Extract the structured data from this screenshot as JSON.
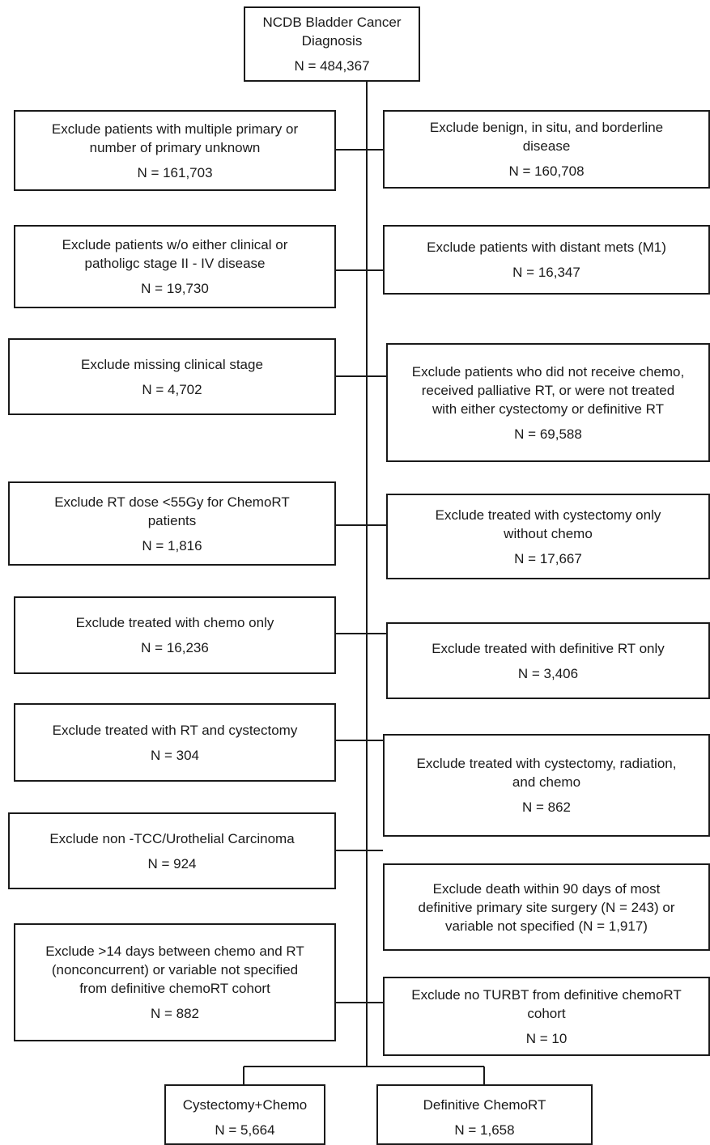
{
  "root": {
    "text": "NCDB Bladder Cancer Diagnosis",
    "n": "N = 484,367"
  },
  "left": [
    {
      "text": "Exclude patients with multiple primary or\nnumber of primary unknown",
      "n": "N = 161,703"
    },
    {
      "text": "Exclude patients w/o either clinical or\npatholigc stage II   - IV disease",
      "n": "N = 19,730"
    },
    {
      "text": "Exclude missing clinical stage",
      "n": "N = 4,702"
    },
    {
      "text": "Exclude RT dose <55Gy for ChemoRT\npatients",
      "n": "N = 1,816"
    },
    {
      "text": "Exclude treated with chemo only",
      "n": "N = 16,236"
    },
    {
      "text": "Exclude treated with RT and cystectomy",
      "n": "N = 304"
    },
    {
      "text": "Exclude non -TCC/Urothelial Carcinoma",
      "n": "N = 924"
    },
    {
      "text": "Exclude >14 days between chemo and RT\n(nonconcurrent) or variable not specified\nfrom definitive chemoRT cohort",
      "n": "N = 882"
    }
  ],
  "right": [
    {
      "text": "Exclude benign, in situ, and borderline\ndisease",
      "n": "N = 160,708"
    },
    {
      "text": "Exclude patients with distant mets (M1)",
      "n": "N = 16,347"
    },
    {
      "text": "Exclude patients who did not receive chemo,\nreceived palliative RT, or were not treated\nwith either cystectomy or definitive RT",
      "n": "N = 69,588"
    },
    {
      "text": "Exclude treated with cystectomy only\nwithout chemo",
      "n": "N = 17,667"
    },
    {
      "text": "Exclude treated with definitive RT only",
      "n": "N = 3,406"
    },
    {
      "text": "Exclude treated with cystectomy, radiation,\nand chemo",
      "n": "N = 862"
    },
    {
      "text": "Exclude death within 90 days of most\ndefinitive primary site surgery (N = 243) or\nvariable not specified (N = 1,917)",
      "n": ""
    },
    {
      "text": "Exclude no TURBT from definitive chemoRT\ncohort",
      "n": "N = 10"
    }
  ],
  "outcomes": [
    {
      "text": "Cystectomy+Chemo",
      "n": "N = 5,664"
    },
    {
      "text": "Definitive ChemoRT",
      "n": "N = 1,658"
    }
  ]
}
